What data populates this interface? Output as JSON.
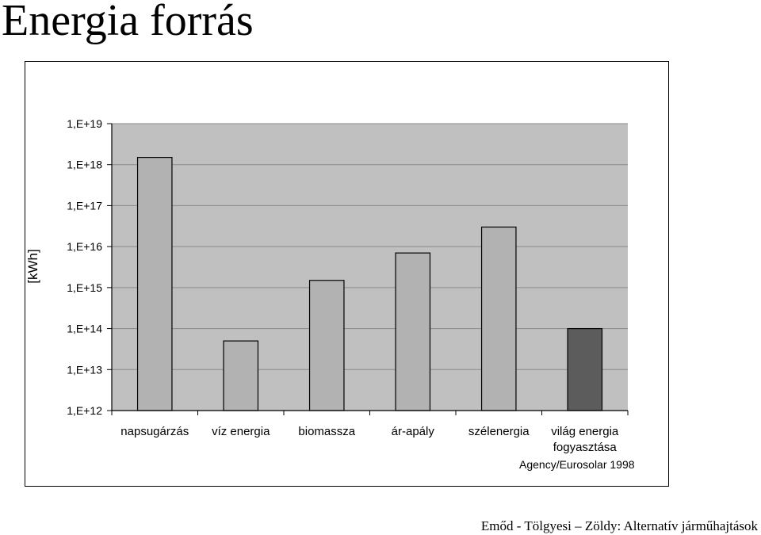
{
  "title": "Energia forrás",
  "chart_data": {
    "type": "bar",
    "ylabel": "[kWh]",
    "y_scale": "log",
    "ylim": [
      1000000000000.0,
      1e+19
    ],
    "y_ticks": [
      "1,E+12",
      "1,E+13",
      "1,E+14",
      "1,E+15",
      "1,E+16",
      "1,E+17",
      "1,E+18",
      "1,E+19"
    ],
    "categories": [
      [
        "napsugárzás"
      ],
      [
        "víz energia"
      ],
      [
        "biomassza"
      ],
      [
        "ár-apály"
      ],
      [
        "szélenergia"
      ],
      [
        "világ energia",
        "fogyasztása"
      ]
    ],
    "values": [
      1.5e+18,
      50000000000000.0,
      1500000000000000.0,
      7000000000000000.0,
      3e+16,
      100000000000000.0
    ],
    "bar_colors": [
      "#b2b2b2",
      "#b2b2b2",
      "#b2b2b2",
      "#b2b2b2",
      "#b2b2b2",
      "#5c5c5c"
    ],
    "plot_background": "#c0c0c0",
    "grid": true,
    "source": "Agency/Eurosolar 1998"
  },
  "footer": "Emőd - Tölgyesi – Zöldy: Alternatív járműhajtások"
}
